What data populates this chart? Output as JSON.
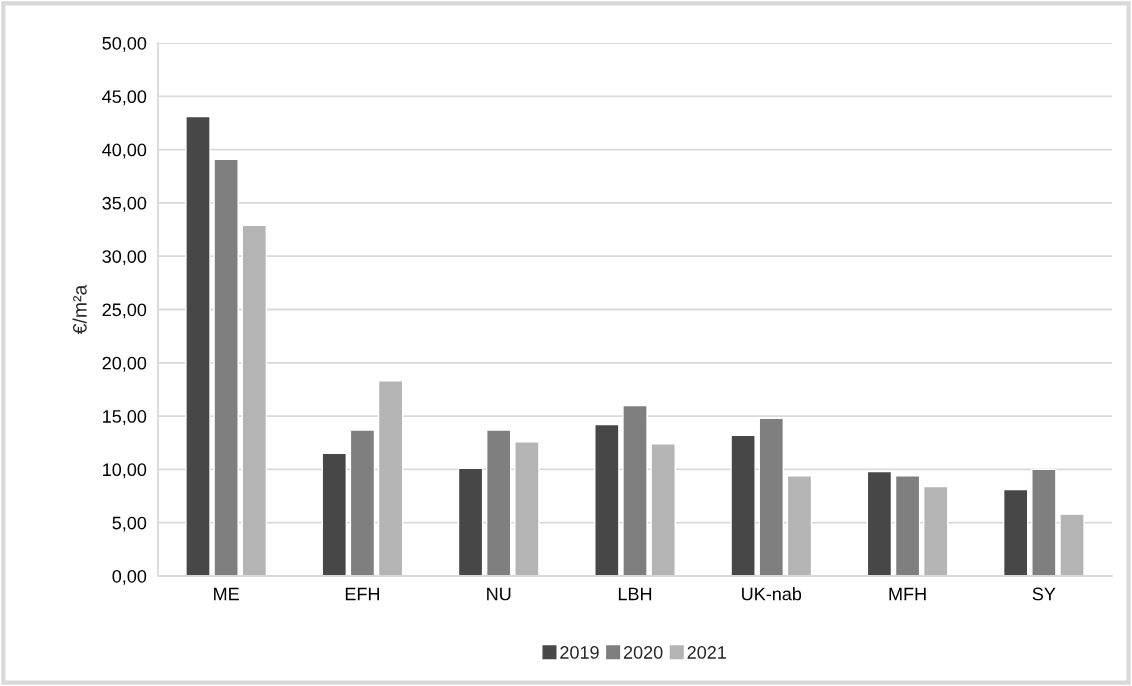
{
  "chart_data": {
    "type": "bar",
    "ylabel": "€/m²a",
    "categories": [
      "ME",
      "EFH",
      "NU",
      "LBH",
      "UK-nab",
      "MFH",
      "SY"
    ],
    "series": [
      {
        "name": "2019",
        "color": "#474747",
        "values": [
          43.1,
          11.5,
          10.1,
          14.2,
          13.2,
          9.8,
          8.1
        ]
      },
      {
        "name": "2020",
        "color": "#7f7f7f",
        "values": [
          39.1,
          13.7,
          13.7,
          16.0,
          14.8,
          9.4,
          10.0
        ]
      },
      {
        "name": "2021",
        "color": "#b4b4b4",
        "values": [
          32.9,
          18.3,
          12.6,
          12.4,
          9.4,
          8.4,
          5.8
        ]
      }
    ],
    "ylim": [
      0,
      50
    ],
    "yticks": [
      {
        "value": 0,
        "label": "0,00"
      },
      {
        "value": 5,
        "label": "5,00"
      },
      {
        "value": 10,
        "label": "10,00"
      },
      {
        "value": 15,
        "label": "15,00"
      },
      {
        "value": 20,
        "label": "20,00"
      },
      {
        "value": 25,
        "label": "25,00"
      },
      {
        "value": 30,
        "label": "30,00"
      },
      {
        "value": 35,
        "label": "35,00"
      },
      {
        "value": 40,
        "label": "40,00"
      },
      {
        "value": 45,
        "label": "45,00"
      },
      {
        "value": 50,
        "label": "50,00"
      }
    ],
    "grid": "y",
    "legend": "bottom"
  }
}
